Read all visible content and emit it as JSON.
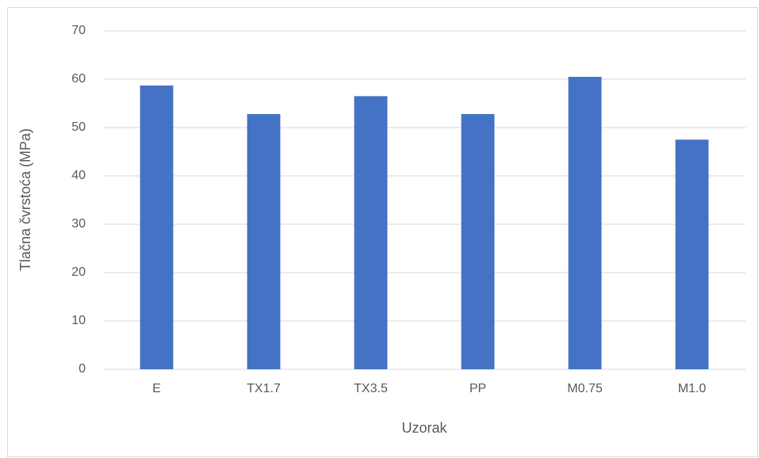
{
  "chart_data": {
    "type": "bar",
    "x_label": "Uzorak",
    "y_label": "Tlačna čvrstoća (MPa)",
    "categories": [
      "E",
      "TX1.7",
      "TX3.5",
      "PP",
      "M0.75",
      "M1.0"
    ],
    "values": [
      58.7,
      52.8,
      56.5,
      52.8,
      60.5,
      47.5
    ],
    "color": "#4472c4",
    "ylim": [
      0,
      70
    ],
    "yticks": [
      0,
      10,
      20,
      30,
      40,
      50,
      60,
      70
    ],
    "grid": true
  }
}
